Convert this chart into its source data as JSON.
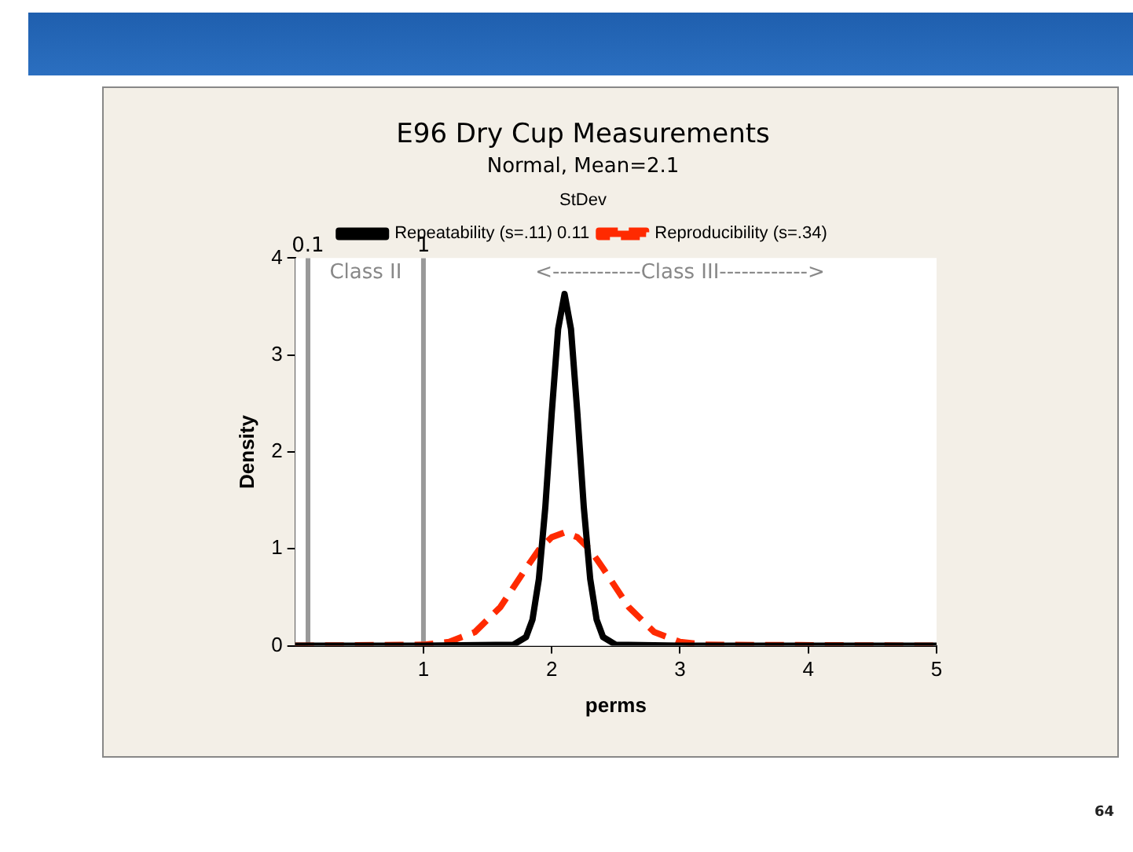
{
  "chart_data": {
    "type": "line",
    "title": "E96 Dry Cup Measurements",
    "subtitle": "Normal, Mean=2.1",
    "xlabel": "perms",
    "ylabel": "Density",
    "legend_title": "StDev",
    "xlim": [
      0,
      5
    ],
    "xticks": [
      1,
      2,
      3,
      4,
      5
    ],
    "ylim": [
      0,
      4
    ],
    "yticks": [
      0,
      1,
      2,
      3,
      4
    ],
    "grid": false,
    "legend": "top",
    "marker": "none",
    "series": [
      {
        "name": "Repeatability (s=.11) 0.11",
        "color": "#000000",
        "line_style": "solid",
        "x": [
          0,
          1,
          1.7,
          1.8,
          1.85,
          1.9,
          1.95,
          2.0,
          2.05,
          2.1,
          2.15,
          2.2,
          2.25,
          2.3,
          2.35,
          2.4,
          2.5,
          3,
          5
        ],
        "values": [
          0,
          0,
          0.01,
          0.09,
          0.27,
          0.69,
          1.43,
          2.4,
          3.27,
          3.63,
          3.27,
          2.4,
          1.43,
          0.69,
          0.27,
          0.09,
          0.01,
          0,
          0
        ]
      },
      {
        "name": "Reproducibility (s=.34)",
        "color": "#ff2a00",
        "line_style": "dashed",
        "x": [
          0,
          1,
          1.2,
          1.4,
          1.6,
          1.8,
          1.9,
          2.0,
          2.1,
          2.2,
          2.3,
          2.4,
          2.6,
          2.8,
          3.0,
          3.2,
          5
        ],
        "values": [
          0,
          0.01,
          0.04,
          0.14,
          0.4,
          0.8,
          0.99,
          1.12,
          1.17,
          1.12,
          0.99,
          0.8,
          0.4,
          0.14,
          0.04,
          0.01,
          0
        ]
      }
    ],
    "ref_lines": [
      {
        "axis": "x",
        "value": 0.1,
        "label": "0.1",
        "color": "#999999"
      },
      {
        "axis": "x",
        "value": 1,
        "label": "1",
        "color": "#999999"
      }
    ],
    "bands": [
      {
        "axis": "x",
        "from": 0.1,
        "to": 1,
        "label": "Class II",
        "color": "#ffffff"
      },
      {
        "axis": "x",
        "from": 1,
        "to": 5,
        "label": "<------------Class III------------>",
        "color": "#ffffff"
      }
    ],
    "annotations": [
      "64"
    ]
  }
}
